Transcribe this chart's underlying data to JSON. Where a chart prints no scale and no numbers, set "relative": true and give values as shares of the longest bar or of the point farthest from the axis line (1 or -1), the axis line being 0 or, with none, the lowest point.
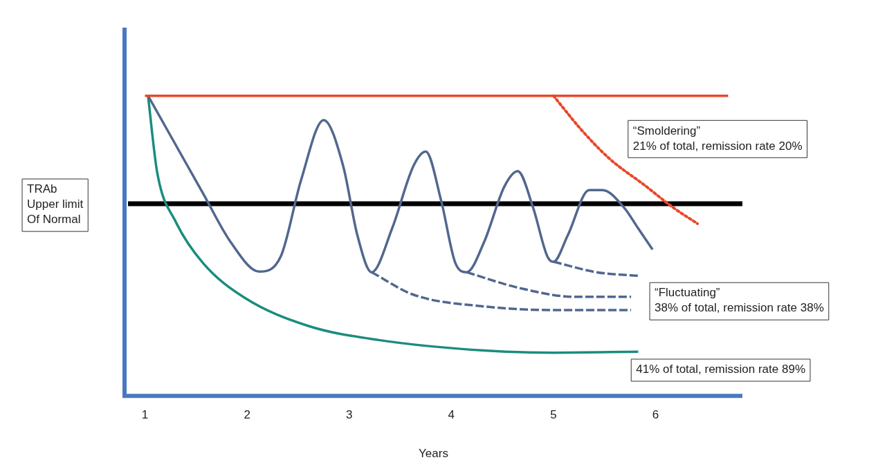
{
  "chart_data": {
    "type": "line",
    "relative": true,
    "xlabel": "Years",
    "xlim": [
      0.8,
      6.85
    ],
    "xticks": [
      1,
      2,
      3,
      4,
      5,
      6
    ],
    "tick_labels": "x",
    "grid": false,
    "legend": false,
    "marker": "none",
    "series": [
      {
        "color": "#e8472b",
        "line_style": "solid",
        "x": [
          1,
          6.71
        ],
        "values": [
          1,
          1
        ]
      },
      {
        "color": "#e8472b",
        "line_style": "dotted",
        "x": [
          5.0,
          5.28,
          5.55,
          5.9,
          6.17,
          6.41
        ],
        "values": [
          1.0,
          0.884,
          0.79,
          0.7,
          0.628,
          0.574
        ]
      },
      {
        "color": "#51678f",
        "line_style": "solid",
        "x": [
          1.03,
          1.3,
          1.57,
          1.84,
          2.12,
          2.33,
          2.53,
          2.75,
          2.94,
          3.08,
          3.22,
          3.42,
          3.63,
          3.75,
          3.9,
          4.04,
          4.15,
          4.32,
          4.52,
          4.65,
          4.8,
          4.94,
          5.0,
          5.14,
          5.35,
          5.48,
          5.69,
          5.83,
          5.97
        ],
        "values": [
          1.0,
          0.837,
          0.674,
          0.512,
          0.414,
          0.465,
          0.721,
          0.919,
          0.767,
          0.535,
          0.412,
          0.558,
          0.767,
          0.814,
          0.651,
          0.442,
          0.412,
          0.512,
          0.698,
          0.749,
          0.628,
          0.465,
          0.447,
          0.535,
          0.686,
          0.686,
          0.628,
          0.558,
          0.488
        ]
      },
      {
        "color": "#51678f",
        "line_style": "dashed",
        "x": [
          3.22,
          3.63,
          4.32,
          5.0,
          5.76
        ],
        "values": [
          0.412,
          0.337,
          0.298,
          0.286,
          0.286
        ]
      },
      {
        "color": "#51678f",
        "line_style": "dashed",
        "x": [
          4.15,
          4.66,
          5.21,
          5.76
        ],
        "values": [
          0.412,
          0.36,
          0.33,
          0.33
        ]
      },
      {
        "color": "#51678f",
        "line_style": "dashed",
        "x": [
          5.0,
          5.42,
          5.83
        ],
        "values": [
          0.447,
          0.412,
          0.4
        ]
      },
      {
        "color": "#1a8c7e",
        "line_style": "solid",
        "x": [
          1.03,
          1.12,
          1.3,
          1.57,
          1.98,
          2.6,
          3.29,
          4.32,
          5.0,
          5.83
        ],
        "values": [
          1.0,
          0.744,
          0.581,
          0.442,
          0.326,
          0.233,
          0.186,
          0.151,
          0.144,
          0.147
        ]
      }
    ],
    "ref_lines": [
      {
        "axis": "y",
        "value": 0.64,
        "label": "TRAb\nUpper limit\nOf Normal",
        "color": "#000000"
      }
    ],
    "annotations": [
      "“Smoldering”\n21% of total, remission rate 20%",
      "“Fluctuating”\n38% of total, remission rate 38%",
      "41% of total, remission rate 89%"
    ]
  }
}
